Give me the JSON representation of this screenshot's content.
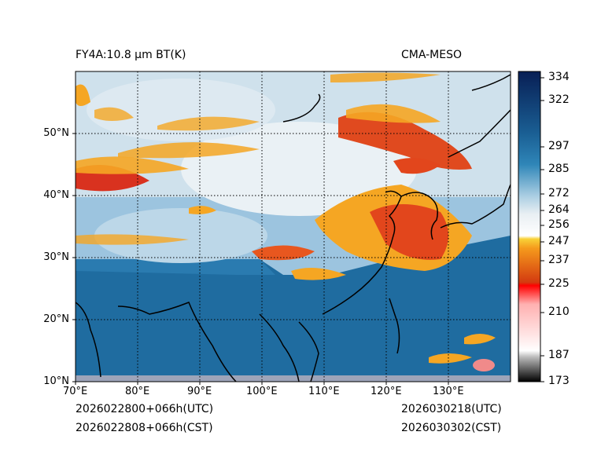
{
  "header": {
    "product": "FY4A:10.8 μm BT(K)",
    "model": "CMA-MESO"
  },
  "footer": {
    "init_utc": "2026022800+066h(UTC)",
    "init_cst": "2026022808+066h(CST)",
    "valid_utc": "2026030218(UTC)",
    "valid_cst": "2026030302(CST)"
  },
  "map": {
    "lon_ticks": [
      "70°E",
      "80°E",
      "90°E",
      "100°E",
      "110°E",
      "120°E",
      "130°E"
    ],
    "lat_ticks": [
      "50°N",
      "40°N",
      "30°N",
      "20°N",
      "10°N"
    ],
    "lon_range": [
      70,
      140
    ],
    "lat_range": [
      10,
      60
    ],
    "grid": "dotted"
  },
  "colorbar": {
    "ticks": [
      "334",
      "322",
      "297",
      "285",
      "272",
      "264",
      "256",
      "247",
      "237",
      "225",
      "210",
      "187",
      "173"
    ],
    "tick_values": [
      334,
      322,
      297,
      285,
      272,
      264,
      256,
      247,
      237,
      225,
      210,
      187,
      173
    ],
    "range": [
      173,
      337
    ]
  },
  "colors": {
    "warm_ocean": "#1f6ca0",
    "cold_land": "#9cc4df",
    "clear_cold": "#e9eff3",
    "cloud_orange": "#f5a623",
    "cloud_red": "#d9321f"
  }
}
